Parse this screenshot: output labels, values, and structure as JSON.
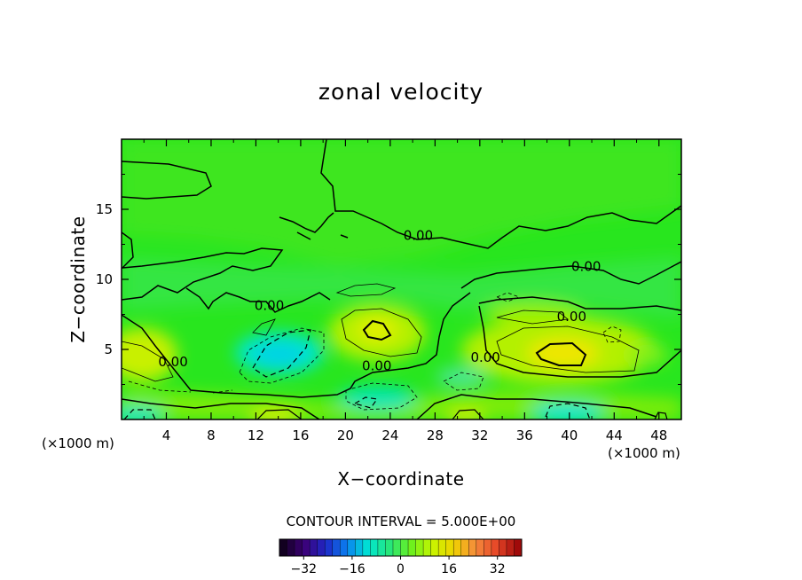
{
  "chart_data": {
    "type": "heatmap",
    "title": "zonal velocity",
    "xlabel": "X−coordinate",
    "ylabel": "Z−coordinate",
    "x_unit_label": "(×1000 m)",
    "y_unit_label": "(×1000 m)",
    "xlim": [
      0,
      50
    ],
    "ylim": [
      0,
      20
    ],
    "x_ticks": [
      4,
      8,
      12,
      16,
      20,
      24,
      28,
      32,
      36,
      40,
      44,
      48
    ],
    "y_ticks": [
      5,
      10,
      15
    ],
    "contour_interval_text": "CONTOUR INTERVAL = 5.000E+00",
    "contour_labels": [
      {
        "text": "0.00",
        "x": 26.5,
        "y": 13.0
      },
      {
        "text": "0.00",
        "x": 41.5,
        "y": 10.8
      },
      {
        "text": "0.00",
        "x": 13.2,
        "y": 8.0
      },
      {
        "text": "0.00",
        "x": 40.2,
        "y": 7.2
      },
      {
        "text": "0.00",
        "x": 4.6,
        "y": 4.0
      },
      {
        "text": "0.00",
        "x": 22.8,
        "y": 3.7
      },
      {
        "text": "0.00",
        "x": 32.5,
        "y": 4.3
      }
    ],
    "features": [
      {
        "kind": "positive-max",
        "x": 23,
        "y": 6.3,
        "value": 10
      },
      {
        "kind": "positive-max",
        "x": 39,
        "y": 4.6,
        "value": 12
      },
      {
        "kind": "positive-max",
        "x": 1.5,
        "y": 4.5,
        "value": 8
      },
      {
        "kind": "negative-min",
        "x": 14.5,
        "y": 4.8,
        "value": -10
      },
      {
        "kind": "negative-min",
        "x": 40,
        "y": 0.6,
        "value": -10
      },
      {
        "kind": "negative-min",
        "x": 22,
        "y": 1.4,
        "value": -7
      }
    ],
    "colorbar": {
      "range": [
        -40,
        40
      ],
      "ticks": [
        -32,
        -16,
        0,
        16,
        32
      ],
      "tick_labels": [
        "−32",
        "−16",
        "0",
        "16",
        "32"
      ],
      "colormap": [
        "#120020",
        "#3c0078",
        "#1e28c8",
        "#0a82f0",
        "#00e6d2",
        "#28e678",
        "#6cf01e",
        "#c8f500",
        "#f0d200",
        "#f58c3c",
        "#e64628",
        "#a00a0a"
      ]
    },
    "grid": false
  }
}
